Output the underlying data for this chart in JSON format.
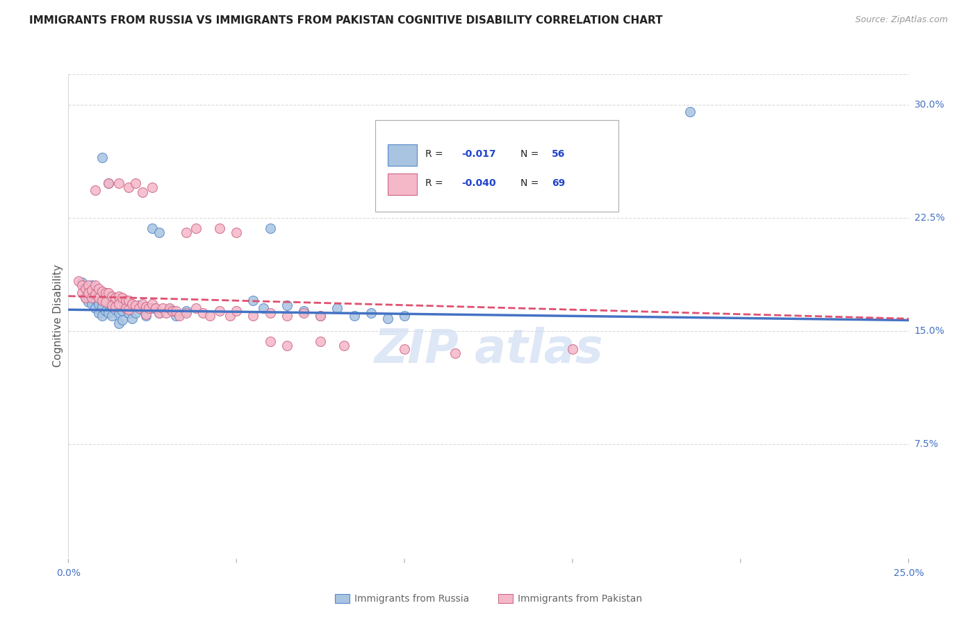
{
  "title": "IMMIGRANTS FROM RUSSIA VS IMMIGRANTS FROM PAKISTAN COGNITIVE DISABILITY CORRELATION CHART",
  "source": "Source: ZipAtlas.com",
  "ylabel": "Cognitive Disability",
  "yticks": [
    0.075,
    0.15,
    0.225,
    0.3
  ],
  "ytick_labels": [
    "7.5%",
    "15.0%",
    "22.5%",
    "30.0%"
  ],
  "xlim": [
    0.0,
    0.25
  ],
  "ylim": [
    0.0,
    0.32
  ],
  "color_russia": "#a8c4e0",
  "color_russia_edge": "#5588cc",
  "color_pakistan": "#f5b8c8",
  "color_pakistan_edge": "#cc6688",
  "color_russia_line": "#4472c4",
  "color_pakistan_line": "#e05070",
  "color_r_value": "#2244cc",
  "color_n_value": "#2244cc",
  "watermark": "ZIP atlas",
  "watermark_color": "#c8d8f0",
  "grid_color": "#cccccc",
  "russia_points": [
    [
      0.004,
      0.182
    ],
    [
      0.005,
      0.178
    ],
    [
      0.005,
      0.172
    ],
    [
      0.006,
      0.175
    ],
    [
      0.006,
      0.169
    ],
    [
      0.007,
      0.18
    ],
    [
      0.007,
      0.173
    ],
    [
      0.007,
      0.168
    ],
    [
      0.008,
      0.177
    ],
    [
      0.008,
      0.171
    ],
    [
      0.008,
      0.165
    ],
    [
      0.009,
      0.174
    ],
    [
      0.009,
      0.168
    ],
    [
      0.009,
      0.162
    ],
    [
      0.01,
      0.172
    ],
    [
      0.01,
      0.166
    ],
    [
      0.01,
      0.16
    ],
    [
      0.011,
      0.17
    ],
    [
      0.011,
      0.163
    ],
    [
      0.012,
      0.168
    ],
    [
      0.012,
      0.162
    ],
    [
      0.013,
      0.166
    ],
    [
      0.013,
      0.16
    ],
    [
      0.014,
      0.164
    ],
    [
      0.015,
      0.168
    ],
    [
      0.015,
      0.162
    ],
    [
      0.015,
      0.155
    ],
    [
      0.016,
      0.163
    ],
    [
      0.016,
      0.157
    ],
    [
      0.017,
      0.165
    ],
    [
      0.018,
      0.162
    ],
    [
      0.019,
      0.158
    ],
    [
      0.02,
      0.162
    ],
    [
      0.021,
      0.167
    ],
    [
      0.022,
      0.164
    ],
    [
      0.023,
      0.16
    ],
    [
      0.025,
      0.165
    ],
    [
      0.027,
      0.162
    ],
    [
      0.03,
      0.164
    ],
    [
      0.032,
      0.16
    ],
    [
      0.035,
      0.163
    ],
    [
      0.01,
      0.265
    ],
    [
      0.012,
      0.248
    ],
    [
      0.025,
      0.218
    ],
    [
      0.027,
      0.215
    ],
    [
      0.06,
      0.218
    ],
    [
      0.055,
      0.17
    ],
    [
      0.058,
      0.165
    ],
    [
      0.065,
      0.167
    ],
    [
      0.07,
      0.163
    ],
    [
      0.075,
      0.16
    ],
    [
      0.08,
      0.165
    ],
    [
      0.085,
      0.16
    ],
    [
      0.09,
      0.162
    ],
    [
      0.095,
      0.158
    ],
    [
      0.1,
      0.16
    ],
    [
      0.185,
      0.295
    ]
  ],
  "pakistan_points": [
    [
      0.003,
      0.183
    ],
    [
      0.004,
      0.18
    ],
    [
      0.004,
      0.175
    ],
    [
      0.005,
      0.178
    ],
    [
      0.005,
      0.172
    ],
    [
      0.006,
      0.18
    ],
    [
      0.006,
      0.175
    ],
    [
      0.007,
      0.177
    ],
    [
      0.007,
      0.172
    ],
    [
      0.008,
      0.18
    ],
    [
      0.008,
      0.174
    ],
    [
      0.009,
      0.178
    ],
    [
      0.009,
      0.172
    ],
    [
      0.01,
      0.176
    ],
    [
      0.01,
      0.17
    ],
    [
      0.011,
      0.175
    ],
    [
      0.011,
      0.169
    ],
    [
      0.012,
      0.175
    ],
    [
      0.013,
      0.173
    ],
    [
      0.013,
      0.167
    ],
    [
      0.014,
      0.172
    ],
    [
      0.014,
      0.166
    ],
    [
      0.015,
      0.173
    ],
    [
      0.015,
      0.168
    ],
    [
      0.016,
      0.172
    ],
    [
      0.017,
      0.17
    ],
    [
      0.017,
      0.165
    ],
    [
      0.018,
      0.17
    ],
    [
      0.018,
      0.164
    ],
    [
      0.019,
      0.168
    ],
    [
      0.02,
      0.167
    ],
    [
      0.021,
      0.165
    ],
    [
      0.022,
      0.168
    ],
    [
      0.023,
      0.166
    ],
    [
      0.023,
      0.161
    ],
    [
      0.024,
      0.165
    ],
    [
      0.025,
      0.168
    ],
    [
      0.026,
      0.165
    ],
    [
      0.027,
      0.162
    ],
    [
      0.028,
      0.165
    ],
    [
      0.029,
      0.162
    ],
    [
      0.03,
      0.165
    ],
    [
      0.031,
      0.163
    ],
    [
      0.032,
      0.163
    ],
    [
      0.033,
      0.16
    ],
    [
      0.035,
      0.162
    ],
    [
      0.038,
      0.165
    ],
    [
      0.04,
      0.162
    ],
    [
      0.042,
      0.16
    ],
    [
      0.045,
      0.163
    ],
    [
      0.048,
      0.16
    ],
    [
      0.05,
      0.163
    ],
    [
      0.055,
      0.16
    ],
    [
      0.06,
      0.162
    ],
    [
      0.065,
      0.16
    ],
    [
      0.07,
      0.162
    ],
    [
      0.075,
      0.16
    ],
    [
      0.008,
      0.243
    ],
    [
      0.012,
      0.248
    ],
    [
      0.015,
      0.248
    ],
    [
      0.018,
      0.245
    ],
    [
      0.02,
      0.248
    ],
    [
      0.022,
      0.242
    ],
    [
      0.025,
      0.245
    ],
    [
      0.035,
      0.215
    ],
    [
      0.038,
      0.218
    ],
    [
      0.045,
      0.218
    ],
    [
      0.05,
      0.215
    ],
    [
      0.06,
      0.143
    ],
    [
      0.065,
      0.14
    ],
    [
      0.075,
      0.143
    ],
    [
      0.082,
      0.14
    ],
    [
      0.1,
      0.138
    ],
    [
      0.115,
      0.135
    ],
    [
      0.15,
      0.138
    ]
  ]
}
